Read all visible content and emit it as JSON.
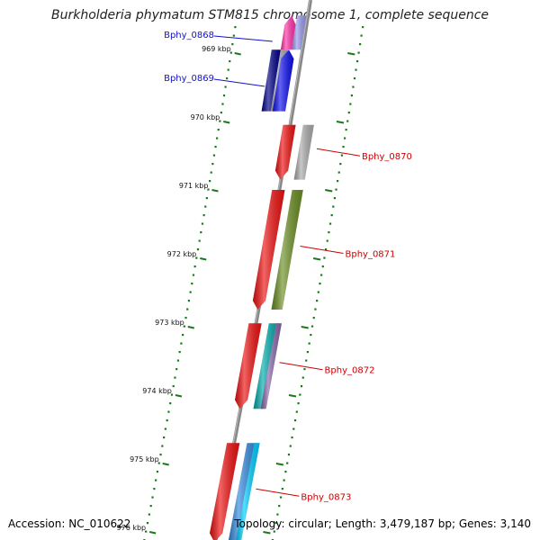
{
  "title": "Burkholderia phymatum STM815 chromosome 1, complete sequence",
  "footer": {
    "accession": "Accession: NC_010622",
    "topology": "Topology: circular; Length: 3,479,187 bp; Genes: 3,140"
  },
  "colors": {
    "backbone": "#888888",
    "tick": "#1a7a1a",
    "forward_label": "#1010cc",
    "reverse_label": "#cc0000"
  },
  "kbp_ticks": [
    {
      "label": "969 kbp",
      "kbp": 969
    },
    {
      "label": "970 kbp",
      "kbp": 970
    },
    {
      "label": "971 kbp",
      "kbp": 971
    },
    {
      "label": "972 kbp",
      "kbp": 972
    },
    {
      "label": "973 kbp",
      "kbp": 973
    },
    {
      "label": "974 kbp",
      "kbp": 974
    },
    {
      "label": "975 kbp",
      "kbp": 975
    },
    {
      "label": "976 kbp",
      "kbp": 976
    }
  ],
  "genes": [
    {
      "label": "Bphy_0868",
      "strand": "forward",
      "start_kbp": 968.45,
      "end_kbp": 968.95,
      "color": "#ff33aa"
    },
    {
      "label": "Bphy_0869",
      "strand": "forward",
      "start_kbp": 968.95,
      "end_kbp": 969.85,
      "color": "#1010ee"
    },
    {
      "label": "Bphy_0870",
      "strand": "reverse",
      "start_kbp": 970.05,
      "end_kbp": 970.85,
      "color": "#ee1111"
    },
    {
      "label": "Bphy_0871",
      "strand": "reverse",
      "start_kbp": 971.0,
      "end_kbp": 972.75,
      "color": "#ee1111"
    },
    {
      "label": "Bphy_0872",
      "strand": "reverse",
      "start_kbp": 972.95,
      "end_kbp": 974.2,
      "color": "#ee1111"
    },
    {
      "label": "Bphy_0873",
      "strand": "reverse",
      "start_kbp": 974.7,
      "end_kbp": 976.15,
      "color": "#ee1111"
    }
  ],
  "feature_tracks": [
    {
      "strand": "forward",
      "start_kbp": 968.45,
      "end_kbp": 968.95,
      "color": "#9999ee"
    },
    {
      "strand": "forward",
      "start_kbp": 968.95,
      "end_kbp": 969.85,
      "color": "#000088"
    },
    {
      "strand": "forward",
      "start_kbp": 968.95,
      "end_kbp": 969.85,
      "color": "#aaaaaa"
    },
    {
      "strand": "reverse",
      "start_kbp": 970.05,
      "end_kbp": 970.85,
      "color": "#aaaaaa"
    },
    {
      "strand": "reverse",
      "start_kbp": 971.0,
      "end_kbp": 972.75,
      "color": "#6b8e23"
    },
    {
      "strand": "reverse",
      "start_kbp": 972.95,
      "end_kbp": 974.2,
      "color": "#00aaaa"
    },
    {
      "strand": "reverse",
      "start_kbp": 972.95,
      "end_kbp": 974.2,
      "color": "#8866aa"
    },
    {
      "strand": "reverse",
      "start_kbp": 974.7,
      "end_kbp": 976.15,
      "color": "#3388dd"
    },
    {
      "strand": "reverse",
      "start_kbp": 974.7,
      "end_kbp": 976.15,
      "color": "#00ccff"
    }
  ]
}
